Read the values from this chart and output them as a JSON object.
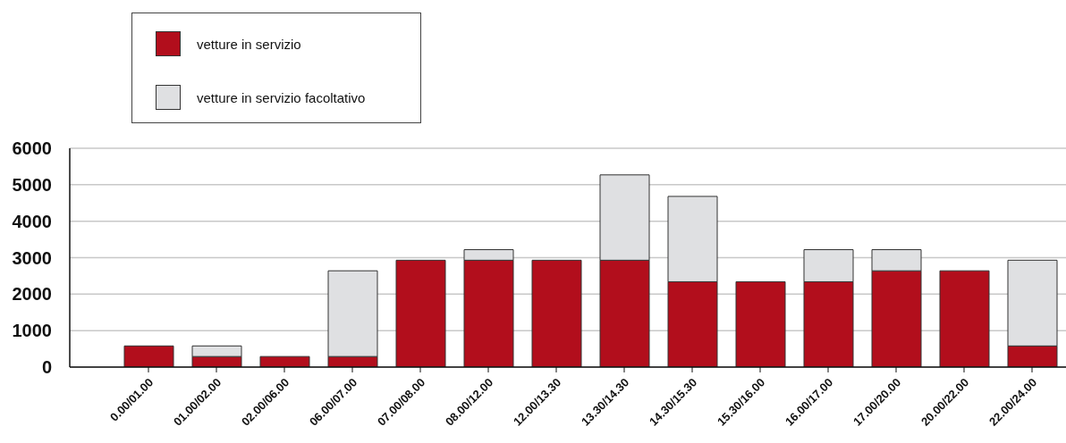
{
  "chart_data": {
    "type": "bar",
    "stacked": true,
    "categories": [
      "0.00/01.00",
      "01.00/02.00",
      "02.00/06.00",
      "06.00/07.00",
      "07.00/08.00",
      "08.00/12.00",
      "12.00/13.30",
      "13.30/14.30",
      "14.30/15.30",
      "15.30/16.00",
      "16.00/17.00",
      "17.00/20.00",
      "20.00/22.00",
      "22.00/24.00"
    ],
    "series": [
      {
        "name": "vetture in servizio",
        "color": "#b20e1c",
        "values": [
          580,
          290,
          290,
          290,
          2930,
          2930,
          2930,
          2930,
          2340,
          2340,
          2340,
          2640,
          2640,
          580
        ]
      },
      {
        "name": "vetture in servizio facoltativo",
        "color": "#dfe0e2",
        "values": [
          0,
          290,
          0,
          2350,
          0,
          290,
          0,
          2340,
          2340,
          0,
          880,
          580,
          0,
          2350
        ]
      }
    ],
    "ylim": [
      0,
      6000
    ],
    "yticks": [
      0,
      1000,
      2000,
      3000,
      4000,
      5000,
      6000
    ],
    "grid": "y",
    "legend": "top left"
  }
}
